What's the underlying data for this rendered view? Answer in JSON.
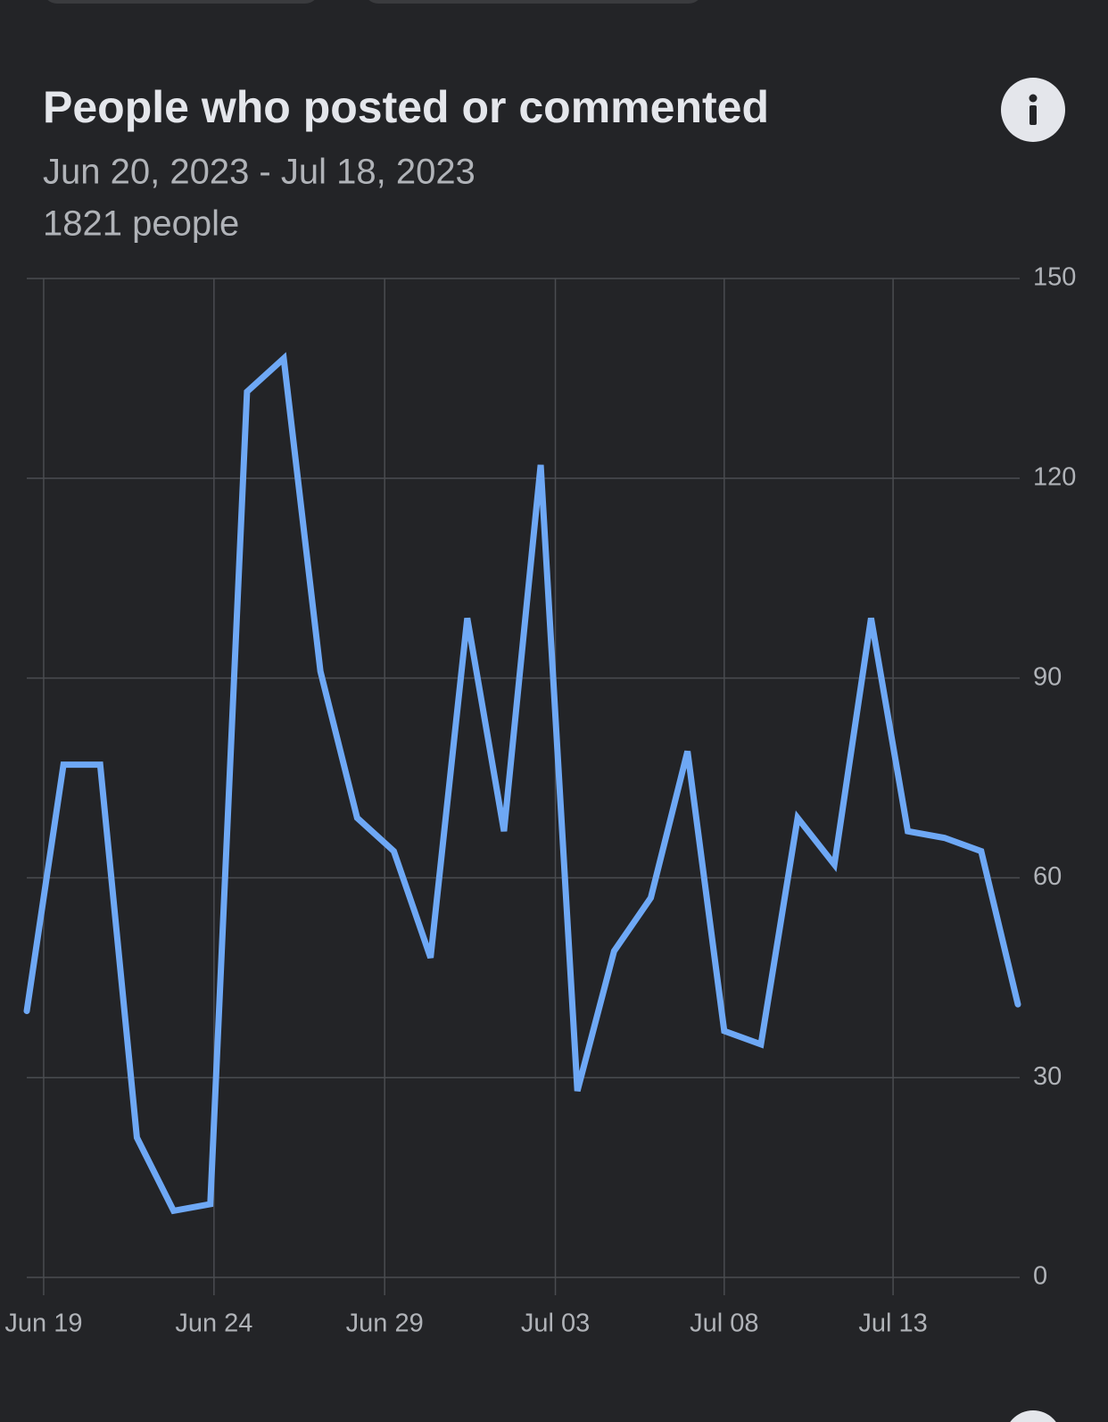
{
  "chart_data": {
    "type": "line",
    "title": "People who posted or commented",
    "subtitle": "Jun 20, 2023 - Jul 18, 2023",
    "summary": "1821 people",
    "x": [
      0,
      1,
      2,
      3,
      4,
      5,
      6,
      7,
      8,
      9,
      10,
      11,
      12,
      13,
      14,
      15,
      16,
      17,
      18,
      19,
      20,
      21,
      22,
      23,
      24,
      25,
      26,
      27
    ],
    "xlim": [
      0,
      27
    ],
    "xticks": [
      {
        "value": 0.46,
        "label": "Jun 19"
      },
      {
        "value": 5.1,
        "label": "Jun 24"
      },
      {
        "value": 9.75,
        "label": "Jun 29"
      },
      {
        "value": 14.4,
        "label": "Jul 03"
      },
      {
        "value": 19.0,
        "label": "Jul 08"
      },
      {
        "value": 23.6,
        "label": "Jul 13"
      }
    ],
    "series": [
      {
        "color": "#6ea8f5",
        "values": [
          40,
          77,
          77,
          21,
          10,
          11,
          133,
          138,
          91,
          69,
          64,
          48,
          99,
          67,
          122,
          28,
          49,
          57,
          79,
          37,
          35,
          69,
          62,
          99,
          67,
          66,
          64,
          41
        ]
      }
    ],
    "ylim": [
      0,
      150
    ],
    "yticks": [
      0,
      30,
      60,
      90,
      120,
      150
    ],
    "grid": true
  }
}
